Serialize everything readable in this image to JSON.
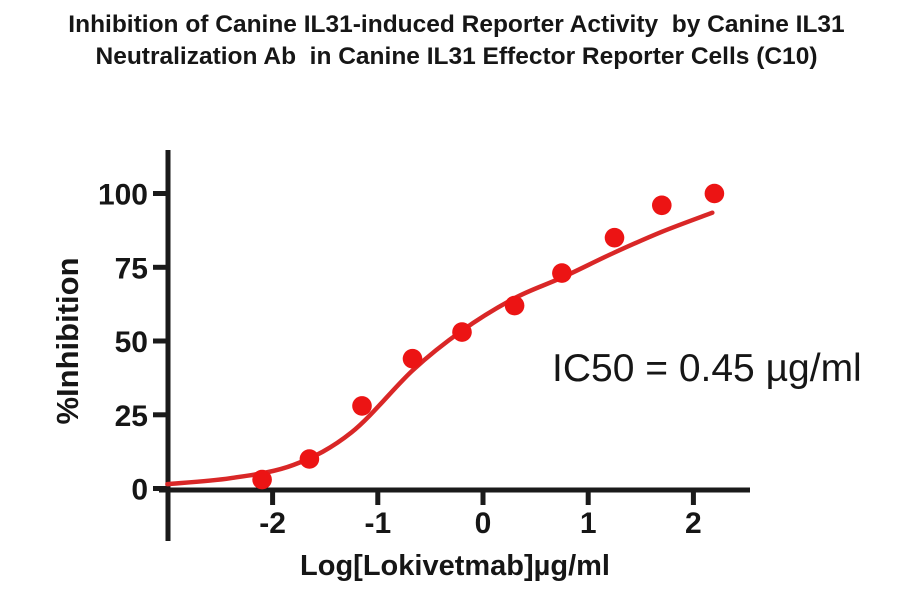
{
  "title": {
    "line1": "Inhibition of Canine IL31-induced Reporter Activity  by Canine IL31",
    "line2": "Neutralization Ab  in Canine IL31 Effector Reporter Cells (C10)"
  },
  "chart_data": {
    "type": "scatter",
    "title": "Inhibition of Canine IL31-induced Reporter Activity by Canine IL31 Neutralization Ab in Canine IL31 Effector Reporter Cells (C10)",
    "xlabel": "Log[Lokivetmab]µg/ml",
    "ylabel": "%Inhibition",
    "xlim": [
      -3,
      2.5
    ],
    "ylim": [
      0,
      100
    ],
    "x_ticks": [
      "-2",
      "-1",
      "0",
      "1",
      "2"
    ],
    "y_ticks": [
      "100",
      "75",
      "50",
      "25",
      "0"
    ],
    "grid": false,
    "legend": "none",
    "annotation": "IC50 = 0.45 µg/ml",
    "ic50_ug_ml": 0.45,
    "series": [
      {
        "name": "observed % inhibition",
        "type": "scatter",
        "x": [
          -2.1,
          -1.65,
          -1.15,
          -0.67,
          -0.2,
          0.3,
          0.75,
          1.25,
          1.7,
          2.2
        ],
        "y": [
          3,
          10,
          28,
          44,
          53,
          62,
          73,
          85,
          96,
          100
        ]
      },
      {
        "name": "sigmoidal dose-response fit",
        "type": "line",
        "x": [
          -3.0,
          -2.4,
          -1.8,
          -1.25,
          -0.67,
          -0.2,
          0.3,
          0.75,
          1.25,
          1.7,
          2.18
        ],
        "y": [
          1.5,
          3.5,
          8,
          19,
          40,
          53.5,
          64.5,
          71.5,
          80,
          87,
          93.5
        ]
      }
    ],
    "colors": {
      "points": "#ec1414",
      "curve": "#d92727",
      "axis": "#1a1a1a",
      "text": "#161616"
    }
  }
}
